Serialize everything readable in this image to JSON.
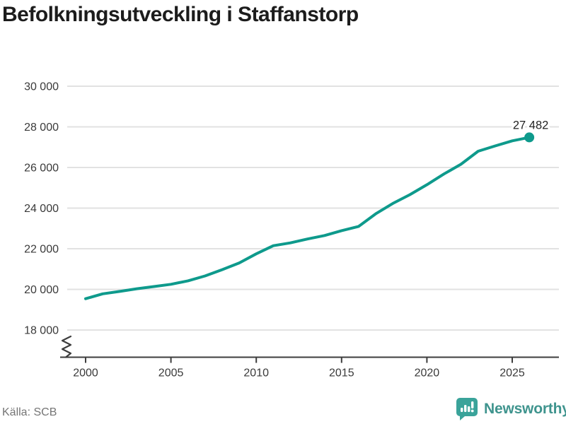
{
  "title": "Befolkningsutveckling i Staffanstorp",
  "source": "Källa: SCB",
  "brand": {
    "name": "Newsworthy",
    "icon": "newsworthy-bar-chart-bubble-icon"
  },
  "colors": {
    "line": "#0e9a8c",
    "point": "#0e9a8c",
    "grid": "#e2e2e2",
    "axis": "#3d3d3d",
    "title": "#1c1c1c",
    "tick_label": "#3a3a3a",
    "end_label": "#222222",
    "source": "#757575",
    "brand": "#3f948e"
  },
  "chart_data": {
    "type": "line",
    "title": "Befolkningsutveckling i Staffanstorp",
    "xlabel": "",
    "ylabel": "",
    "x": [
      2000,
      2001,
      2002,
      2003,
      2004,
      2005,
      2006,
      2007,
      2008,
      2009,
      2010,
      2011,
      2012,
      2013,
      2014,
      2015,
      2016,
      2017,
      2018,
      2019,
      2020,
      2021,
      2022,
      2023,
      2024,
      2025,
      2026
    ],
    "values": [
      19540,
      19780,
      19900,
      20030,
      20140,
      20250,
      20420,
      20660,
      20970,
      21300,
      21750,
      22150,
      22290,
      22480,
      22650,
      22890,
      23100,
      23720,
      24230,
      24660,
      25150,
      25680,
      26160,
      26800,
      27060,
      27310,
      27482
    ],
    "end_value": 27482,
    "end_label": "27 482",
    "y_ticks": [
      {
        "value": 30000,
        "label": "30 000"
      },
      {
        "value": 28000,
        "label": "28 000"
      },
      {
        "value": 26000,
        "label": "26 000"
      },
      {
        "value": 24000,
        "label": "24 000"
      },
      {
        "value": 22000,
        "label": "22 000"
      },
      {
        "value": 20000,
        "label": "20 000"
      },
      {
        "value": 18000,
        "label": "18 000"
      }
    ],
    "x_ticks": [
      {
        "value": 2000,
        "label": "2000"
      },
      {
        "value": 2005,
        "label": "2005"
      },
      {
        "value": 2010,
        "label": "2010"
      },
      {
        "value": 2015,
        "label": "2015"
      },
      {
        "value": 2020,
        "label": "2020"
      },
      {
        "value": 2025,
        "label": "2025"
      }
    ],
    "ylim": [
      18000,
      30000
    ],
    "xlim": [
      2000,
      2026
    ],
    "grid": "horizontal-only",
    "axis_break": true,
    "legend": "none"
  }
}
